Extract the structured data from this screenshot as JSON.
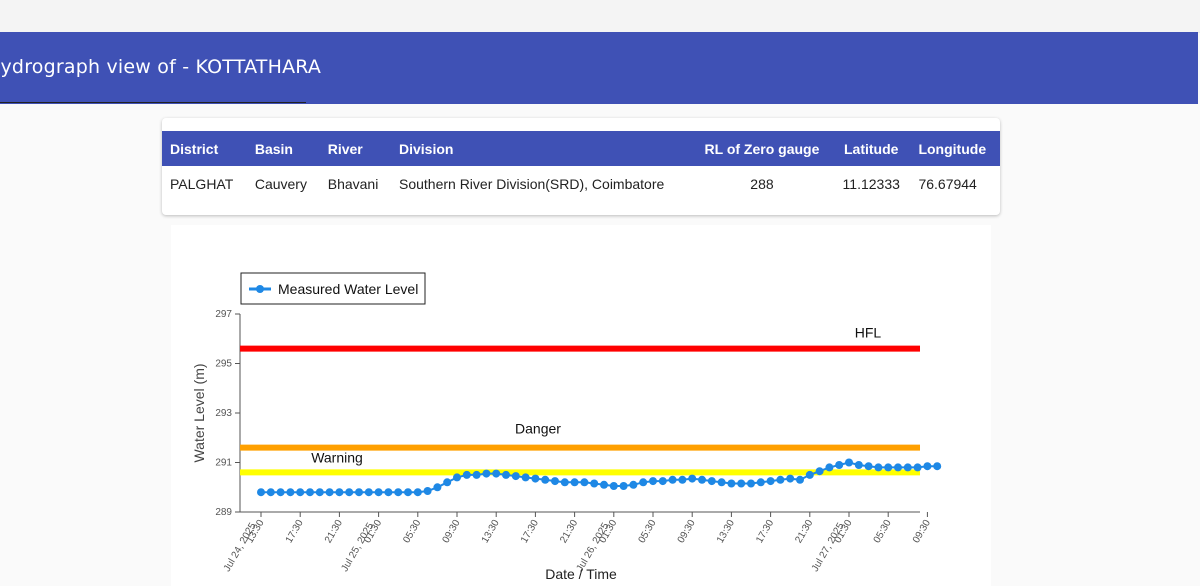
{
  "header": {
    "title": "Hydrograph view of - KOTTATHARA"
  },
  "station_table": {
    "headers": [
      "District",
      "Basin",
      "River",
      "Division",
      "RL of Zero gauge",
      "Latitude",
      "Longitude"
    ],
    "row": [
      "PALGHAT",
      "Cauvery",
      "Bhavani",
      "Southern River Division(SRD), Coimbatore",
      "288",
      "11.12333",
      "76.67944"
    ]
  },
  "colors": {
    "header_bg": "#3f51b5",
    "series": "#1e88e5",
    "hfl_line": "#ff0000",
    "danger_line": "#ffa000",
    "warning_line": "#ffff00"
  },
  "chart_data": {
    "type": "line",
    "xlabel": "Date / Time",
    "ylabel": "Water Level (m)",
    "ylim": [
      289,
      297
    ],
    "yticks": [
      "297",
      "295",
      "293",
      "291",
      "289"
    ],
    "xticks": [
      {
        "t": 0,
        "label": "13:30",
        "date": "Jul 24, 2025"
      },
      {
        "t": 4,
        "label": "17:30"
      },
      {
        "t": 8,
        "label": "21:30"
      },
      {
        "t": 12,
        "label": "01:30",
        "date": "Jul 25, 2025"
      },
      {
        "t": 16,
        "label": "05:30"
      },
      {
        "t": 20,
        "label": "09:30"
      },
      {
        "t": 24,
        "label": "13:30"
      },
      {
        "t": 28,
        "label": "17:30"
      },
      {
        "t": 32,
        "label": "21:30"
      },
      {
        "t": 36,
        "label": "01:30",
        "date": "Jul 26, 2025"
      },
      {
        "t": 40,
        "label": "05:30"
      },
      {
        "t": 44,
        "label": "09:30"
      },
      {
        "t": 48,
        "label": "13:30"
      },
      {
        "t": 52,
        "label": "17:30"
      },
      {
        "t": 56,
        "label": "21:30"
      },
      {
        "t": 60,
        "label": "01:30",
        "date": "Jul 27, 2025"
      },
      {
        "t": 64,
        "label": "05:30"
      },
      {
        "t": 68,
        "label": "09:30"
      }
    ],
    "legend": {
      "label": "Measured Water Level",
      "position": "top-left"
    },
    "reference_lines": [
      {
        "name": "HFL",
        "value": 295.6
      },
      {
        "name": "Danger",
        "value": 291.6
      },
      {
        "name": "Warning",
        "value": 290.6
      }
    ],
    "series": [
      {
        "name": "Measured Water Level",
        "x": [
          0,
          1,
          2,
          3,
          4,
          5,
          6,
          7,
          8,
          9,
          10,
          11,
          12,
          13,
          14,
          15,
          16,
          17,
          18,
          19,
          20,
          21,
          22,
          23,
          24,
          25,
          26,
          27,
          28,
          29,
          30,
          31,
          32,
          33,
          34,
          35,
          36,
          37,
          38,
          39,
          40,
          41,
          42,
          43,
          44,
          45,
          46,
          47,
          48,
          49,
          50,
          51,
          52,
          53,
          54,
          55,
          56,
          57,
          58,
          59,
          60,
          61,
          62,
          63,
          64,
          65,
          66,
          67,
          68,
          69
        ],
        "values": [
          289.8,
          289.8,
          289.8,
          289.8,
          289.8,
          289.8,
          289.8,
          289.8,
          289.8,
          289.8,
          289.8,
          289.8,
          289.8,
          289.8,
          289.8,
          289.8,
          289.8,
          289.85,
          290.0,
          290.2,
          290.4,
          290.5,
          290.5,
          290.55,
          290.55,
          290.5,
          290.45,
          290.4,
          290.35,
          290.3,
          290.25,
          290.2,
          290.2,
          290.2,
          290.15,
          290.1,
          290.05,
          290.05,
          290.1,
          290.2,
          290.25,
          290.25,
          290.3,
          290.3,
          290.35,
          290.3,
          290.25,
          290.2,
          290.15,
          290.15,
          290.15,
          290.2,
          290.25,
          290.3,
          290.35,
          290.3,
          290.5,
          290.65,
          290.8,
          290.9,
          291.0,
          290.9,
          290.85,
          290.8,
          290.8,
          290.8,
          290.8,
          290.8,
          290.85,
          290.85
        ]
      }
    ]
  }
}
